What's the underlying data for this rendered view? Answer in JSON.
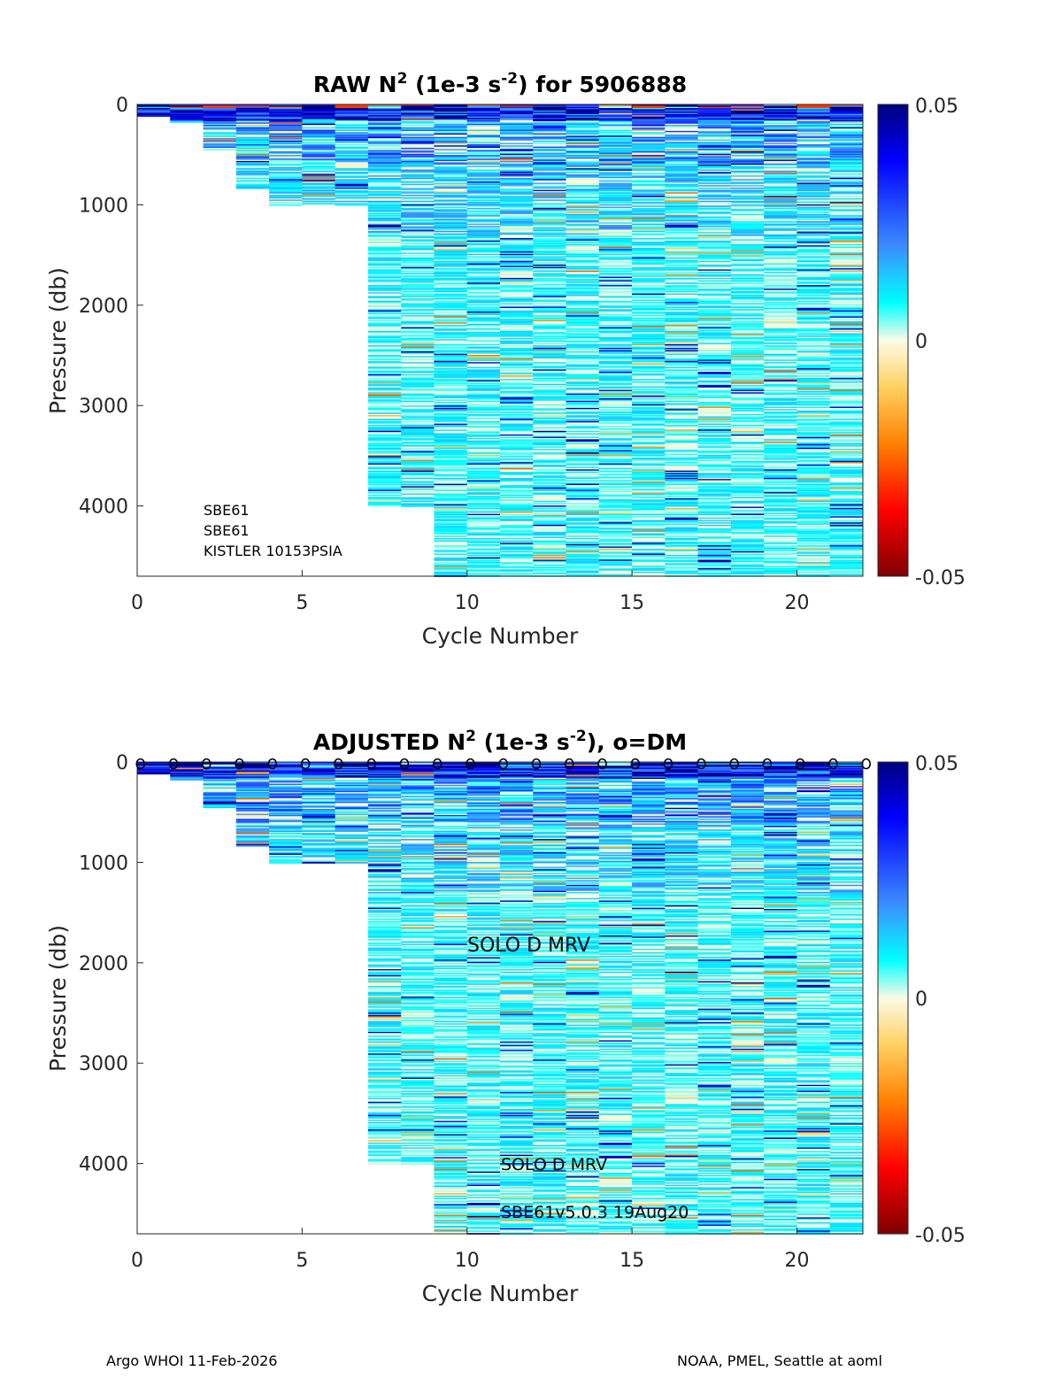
{
  "chart_data": [
    {
      "type": "heatmap",
      "title_prefix": "RAW N",
      "title_sup": "2",
      "title_mid": " (1e-3 s",
      "title_sup2": "-2",
      "title_suffix": ") for 5906888",
      "xlabel": "Cycle Number",
      "ylabel": "Pressure (db)",
      "xlim": [
        0,
        22
      ],
      "ylim": [
        0,
        4700
      ],
      "y_reversed": true,
      "xticks": [
        0,
        5,
        10,
        15,
        20
      ],
      "yticks": [
        0,
        1000,
        2000,
        3000,
        4000
      ],
      "colorbar": {
        "min": -0.05,
        "max": 0.05,
        "ticks": [
          "0.05",
          "0",
          "-0.05"
        ]
      },
      "profile_max_pressure_db": [
        120,
        180,
        450,
        830,
        1000,
        1000,
        1000,
        4000,
        4000,
        4700,
        4700,
        4700,
        4700,
        4700,
        4700,
        4700,
        4700,
        4700,
        4700,
        4700,
        4700,
        4700
      ],
      "annotations": [
        "SBE61",
        "SBE61",
        "KISTLER 10153PSIA"
      ],
      "dm_markers": false
    },
    {
      "type": "heatmap",
      "title_prefix": "ADJUSTED N",
      "title_sup": "2",
      "title_mid": " (1e-3 s",
      "title_sup2": "-2",
      "title_suffix": "), o=DM",
      "xlabel": "Cycle Number",
      "ylabel": "Pressure (db)",
      "xlim": [
        0,
        22
      ],
      "ylim": [
        0,
        4700
      ],
      "y_reversed": true,
      "xticks": [
        0,
        5,
        10,
        15,
        20
      ],
      "yticks": [
        0,
        1000,
        2000,
        3000,
        4000
      ],
      "colorbar": {
        "min": -0.05,
        "max": 0.05,
        "ticks": [
          "0.05",
          "0",
          "-0.05"
        ]
      },
      "profile_max_pressure_db": [
        120,
        180,
        450,
        830,
        1000,
        1000,
        1000,
        4000,
        4000,
        4700,
        4700,
        4700,
        4700,
        4700,
        4700,
        4700,
        4700,
        4700,
        4700,
        4700,
        4700,
        4700
      ],
      "annotations": [
        "SOLO D MRV",
        "SOLO D MRV",
        "SBE61v5.0.3 19Aug20"
      ],
      "dm_markers": true,
      "dm_cycles": [
        0.1,
        1.1,
        2.1,
        3.1,
        4.1,
        5.1,
        6.1,
        7.1,
        8.1,
        9.1,
        10.1,
        11.1,
        12.1,
        13.1,
        14.1,
        15.1,
        16.1,
        17.1,
        18.1,
        19.1,
        20.1,
        21.1,
        22.1
      ],
      "dm_marker": "o"
    }
  ],
  "footer": {
    "left": "Argo WHOI 11-Feb-2026",
    "right": "NOAA, PMEL, Seattle at aoml"
  },
  "colors": {
    "deep_blue": "#00007f",
    "blue": "#0000ff",
    "cyan": "#00ffff",
    "pale": "#fbfbe6",
    "yellow": "#ffff00",
    "orange": "#ff8000",
    "red": "#ff0000",
    "dark_red": "#7f0000"
  }
}
